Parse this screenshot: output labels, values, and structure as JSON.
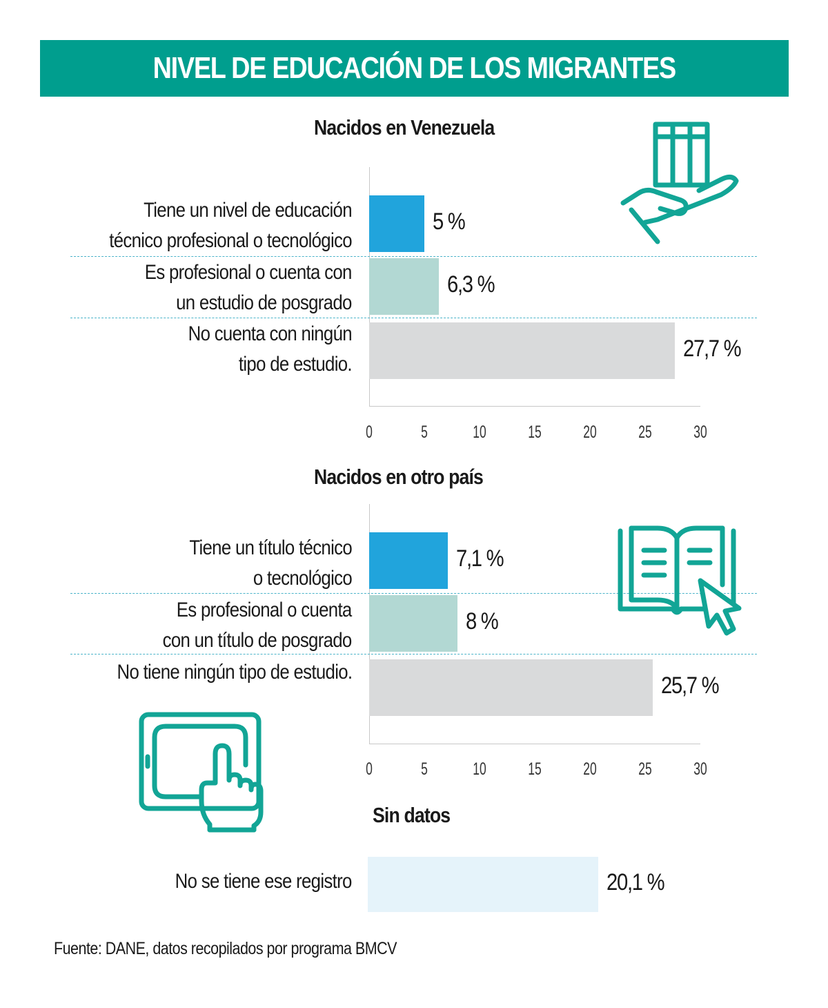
{
  "title": "NIVEL DE EDUCACIÓN DE LOS MIGRANTES",
  "source": "Fuente: DANE, datos recopilados por programa BMCV",
  "colors": {
    "banner": "#009e8e",
    "icon": "#12a596",
    "blue": "#21a4dc",
    "teal_light": "#b2d8d3",
    "gray": "#d9dadb",
    "light_blue": "#e5f3fa"
  },
  "icons": [
    "hand-books-icon",
    "open-book-cursor-icon",
    "tablet-touch-icon"
  ],
  "chart_data": [
    {
      "type": "bar",
      "orientation": "horizontal",
      "title": "Nacidos en Venezuela",
      "categories": [
        "Tiene un nivel de educación\ntécnico profesional o tecnológico",
        "Es profesional o cuenta con\nun estudio de posgrado",
        "No cuenta con ningún\ntipo de estudio."
      ],
      "values": [
        5,
        6.3,
        27.7
      ],
      "value_labels": [
        "5 %",
        "6,3 %",
        "27,7 %"
      ],
      "colors": [
        "#21a4dc",
        "#b2d8d3",
        "#d9dadb"
      ],
      "xlim": [
        0,
        30
      ],
      "ticks": [
        "0",
        "5",
        "10",
        "15",
        "20",
        "25",
        "30"
      ]
    },
    {
      "type": "bar",
      "orientation": "horizontal",
      "title": "Nacidos en otro país",
      "categories": [
        "Tiene un título técnico\no tecnológico",
        "Es profesional o cuenta\ncon un título de posgrado",
        "No tiene ningún tipo de estudio."
      ],
      "values": [
        7.1,
        8,
        25.7
      ],
      "value_labels": [
        "7,1 %",
        "8 %",
        "25,7 %"
      ],
      "colors": [
        "#21a4dc",
        "#b2d8d3",
        "#d9dadb"
      ],
      "xlim": [
        0,
        30
      ],
      "ticks": [
        "0",
        "5",
        "10",
        "15",
        "20",
        "25",
        "30"
      ]
    },
    {
      "type": "bar",
      "orientation": "horizontal",
      "title": "Sin datos",
      "categories": [
        "No se tiene ese registro"
      ],
      "values": [
        20.1
      ],
      "value_labels": [
        "20,1 %"
      ],
      "colors": [
        "#e5f3fa"
      ],
      "xlim": [
        0,
        30
      ]
    }
  ]
}
